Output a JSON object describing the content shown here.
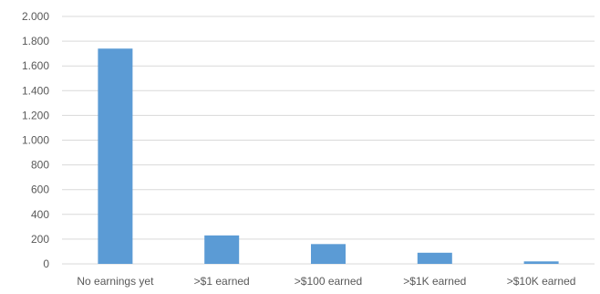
{
  "chart_data": {
    "type": "bar",
    "categories": [
      "No earnings yet",
      ">$1 earned",
      ">$100 earned",
      ">$1K earned",
      ">$10K earned"
    ],
    "values": [
      1740,
      230,
      160,
      90,
      20
    ],
    "title": "",
    "xlabel": "",
    "ylabel": "",
    "ylim": [
      0,
      2000
    ],
    "yticks": [
      0,
      200,
      400,
      600,
      800,
      1000,
      1200,
      1400,
      1600,
      1800,
      2000
    ],
    "ytick_labels": [
      "0",
      "200",
      "400",
      "600",
      "800",
      "1.000",
      "1.200",
      "1.400",
      "1.600",
      "1.800",
      "2.000"
    ],
    "grid": true,
    "legend": "none",
    "bar_color": "#5b9bd5"
  }
}
